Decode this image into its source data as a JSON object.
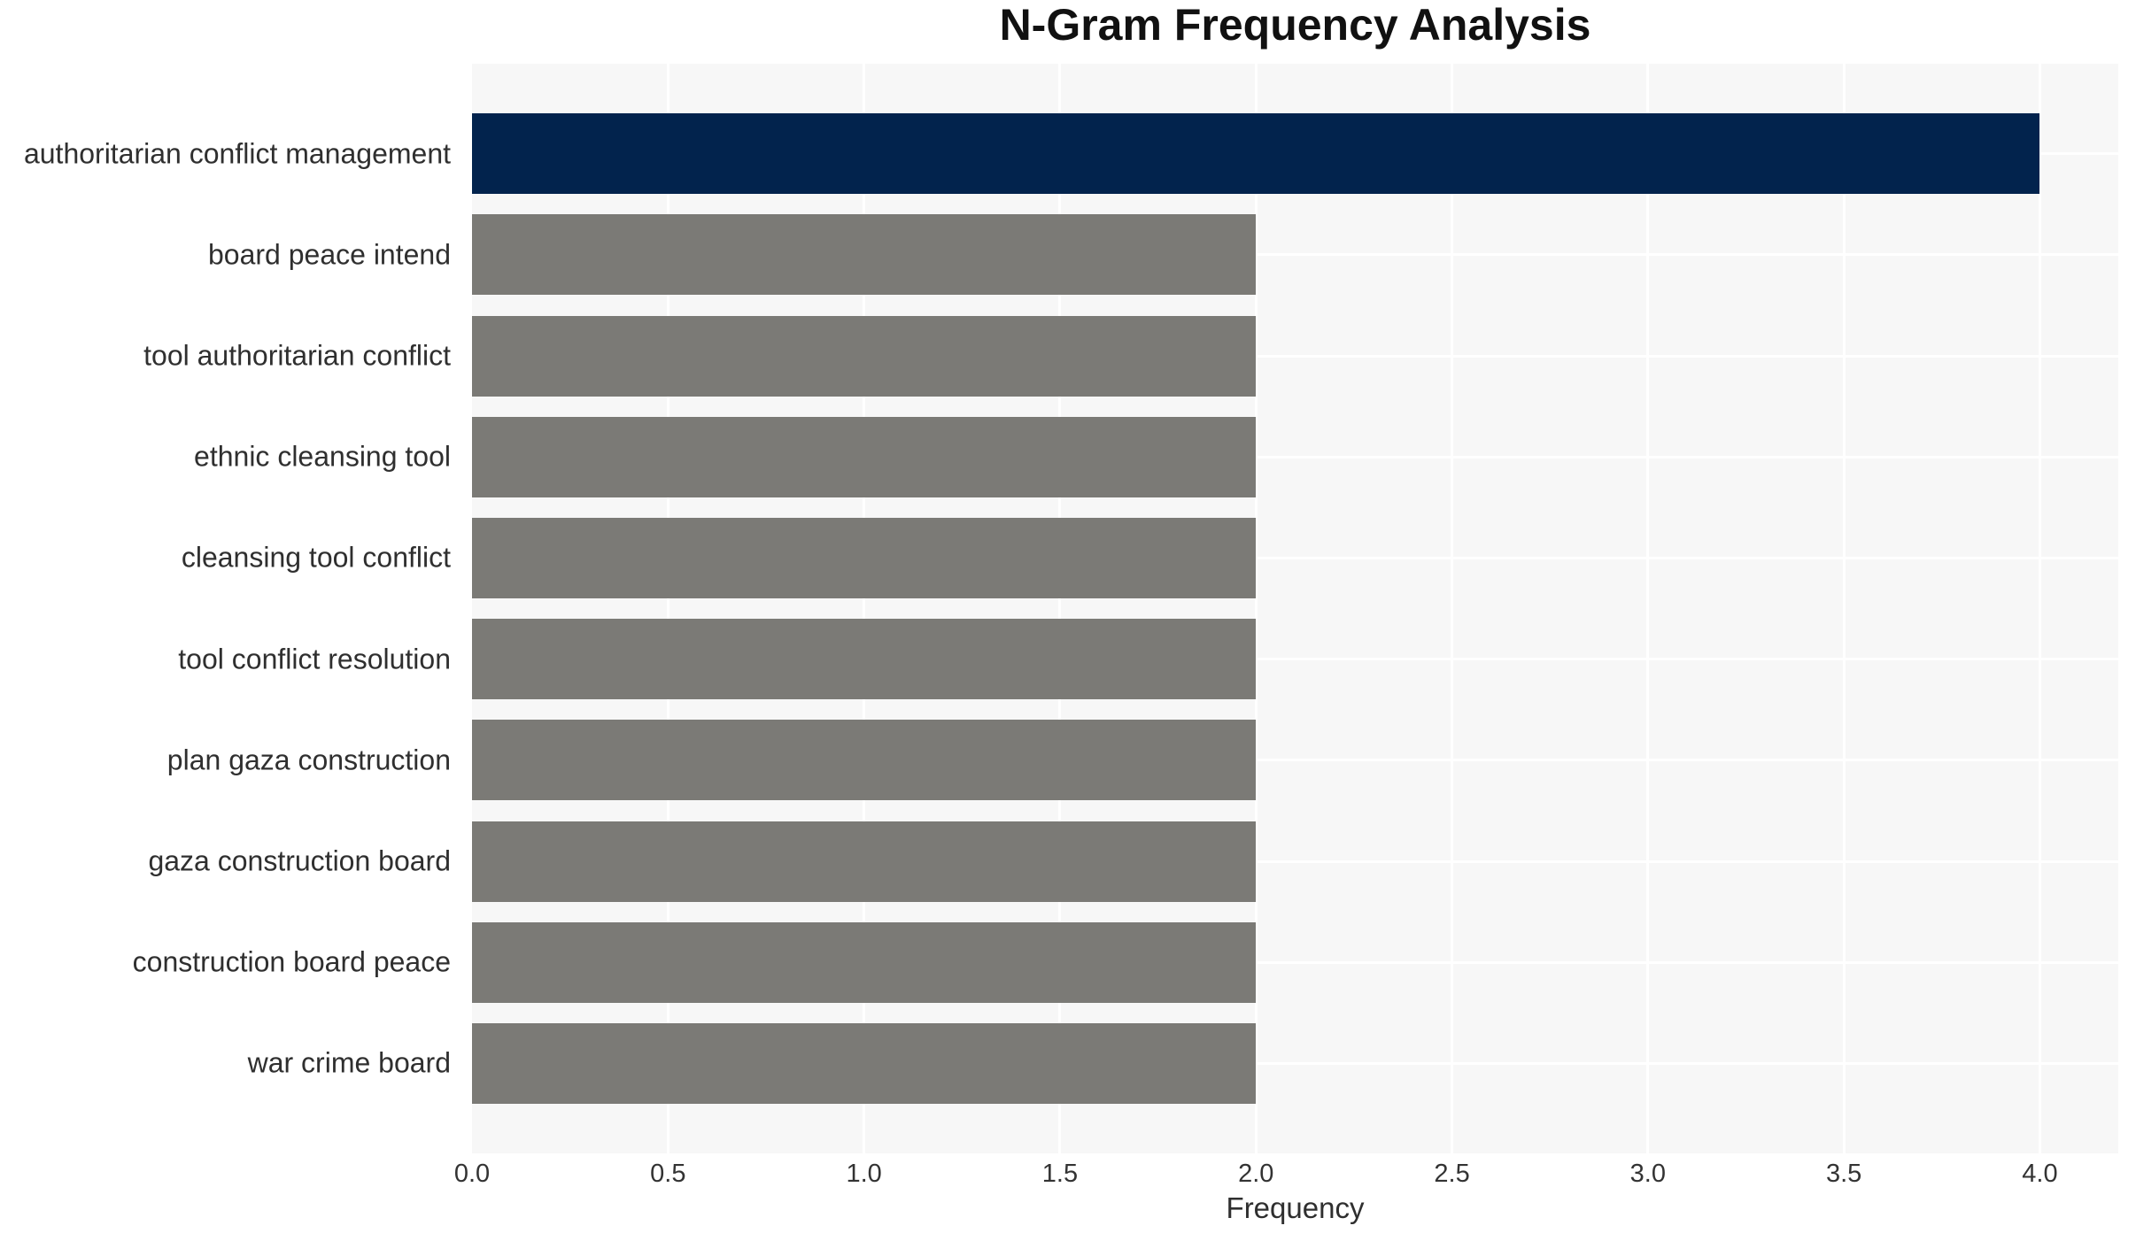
{
  "figure": {
    "title": "N-Gram Frequency Analysis",
    "xlabel": "Frequency"
  },
  "chart_data": {
    "type": "bar",
    "orientation": "horizontal",
    "title": "N-Gram Frequency Analysis",
    "xlabel": "Frequency",
    "ylabel": "",
    "categories": [
      "authoritarian conflict management",
      "board peace intend",
      "tool authoritarian conflict",
      "ethnic cleansing tool",
      "cleansing tool conflict",
      "tool conflict resolution",
      "plan gaza construction",
      "gaza construction board",
      "construction board peace",
      "war crime board"
    ],
    "values": [
      4,
      2,
      2,
      2,
      2,
      2,
      2,
      2,
      2,
      2
    ],
    "xlim": [
      0,
      4.2
    ],
    "xticks": [
      0.0,
      0.5,
      1.0,
      1.5,
      2.0,
      2.5,
      3.0,
      3.5,
      4.0
    ],
    "xtick_labels": [
      "0.0",
      "0.5",
      "1.0",
      "1.5",
      "2.0",
      "2.5",
      "3.0",
      "3.5",
      "4.0"
    ],
    "grid": true,
    "legend": false,
    "bar_colors": [
      "#02234d",
      "#7b7a76",
      "#7b7a76",
      "#7b7a76",
      "#7b7a76",
      "#7b7a76",
      "#7b7a76",
      "#7b7a76",
      "#7b7a76",
      "#7b7a76"
    ],
    "colors": {
      "highlight_bar": "#02234d",
      "default_bar": "#7b7a76",
      "plot_background": "#f7f7f7",
      "gridline": "#ffffff",
      "text": "#2f2f2f"
    }
  }
}
